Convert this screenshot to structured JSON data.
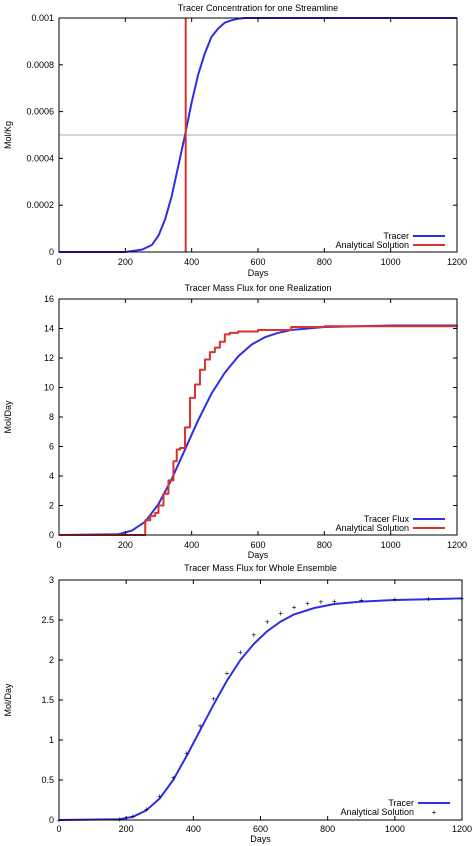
{
  "colors": {
    "background": "#ffffff",
    "axis": "#000000",
    "tracer": "#2e2ee6",
    "analytical": "#d9332b",
    "reference_line": "#a8a8a8",
    "analytical_points": "#e89a9a"
  },
  "chart_data": [
    {
      "type": "line",
      "title": "Tracer Concentration for one Streamline",
      "xlabel": "Days",
      "ylabel": "Mol/Kg",
      "xlim": [
        0,
        1200
      ],
      "ylim": [
        0,
        0.001
      ],
      "xticks": [
        0,
        200,
        400,
        600,
        800,
        1000,
        1200
      ],
      "xtick_labels": [
        "0",
        "200",
        "400",
        "600",
        "800",
        "1000",
        "1200"
      ],
      "yticks": [
        0,
        0.0002,
        0.0004,
        0.0006,
        0.0008,
        0.001
      ],
      "ytick_labels": [
        "0",
        "0.0002",
        "0.0004",
        "0.0006",
        "0.0008",
        "0.001"
      ],
      "grid": false,
      "legend_position": "bottom-right",
      "reference_hline": 0.0005,
      "series": [
        {
          "name": "Tracer",
          "color": "#2e2ee6",
          "style": "line",
          "x": [
            0,
            200,
            250,
            280,
            300,
            320,
            340,
            360,
            380,
            400,
            420,
            440,
            460,
            480,
            500,
            520,
            540,
            560,
            600,
            700,
            800,
            1000,
            1200
          ],
          "y": [
            0,
            0,
            1e-05,
            3e-05,
            7e-05,
            0.00014,
            0.00024,
            0.00037,
            0.0005,
            0.00064,
            0.00076,
            0.00085,
            0.00092,
            0.000955,
            0.00098,
            0.00099,
            0.000997,
            0.001,
            0.001,
            0.001,
            0.001,
            0.001,
            0.001
          ]
        },
        {
          "name": "Analytical Solution",
          "color": "#d9332b",
          "style": "vertical",
          "x": [
            382
          ],
          "y": [
            0.001
          ]
        }
      ]
    },
    {
      "type": "line",
      "title": "Tracer Mass Flux for one Realization",
      "xlabel": "Days",
      "ylabel": "Mol/Day",
      "xlim": [
        0,
        1200
      ],
      "ylim": [
        0,
        16
      ],
      "xticks": [
        0,
        200,
        400,
        600,
        800,
        1000,
        1200
      ],
      "xtick_labels": [
        "0",
        "200",
        "400",
        "600",
        "800",
        "1000",
        "1200"
      ],
      "yticks": [
        0,
        2,
        4,
        6,
        8,
        10,
        12,
        14,
        16
      ],
      "ytick_labels": [
        "0",
        "2",
        "4",
        "6",
        "8",
        "10",
        "12",
        "14",
        "16"
      ],
      "grid": false,
      "legend_position": "bottom-right",
      "series": [
        {
          "name": "Tracer Flux",
          "color": "#2e2ee6",
          "style": "line",
          "x": [
            0,
            180,
            220,
            260,
            300,
            340,
            380,
            420,
            460,
            500,
            540,
            580,
            620,
            660,
            700,
            800,
            900,
            1000,
            1200
          ],
          "y": [
            0,
            0.05,
            0.3,
            0.9,
            2.1,
            3.8,
            5.8,
            7.8,
            9.6,
            11.0,
            12.1,
            12.9,
            13.4,
            13.7,
            13.9,
            14.1,
            14.15,
            14.2,
            14.2
          ]
        },
        {
          "name": "Analytical Solution",
          "color": "#d9332b",
          "style": "step",
          "x": [
            0,
            250,
            260,
            275,
            290,
            300,
            315,
            330,
            345,
            355,
            365,
            380,
            395,
            410,
            425,
            440,
            455,
            470,
            485,
            500,
            515,
            540,
            600,
            700,
            800,
            1200
          ],
          "y": [
            0,
            0,
            1.0,
            1.3,
            1.5,
            2.0,
            2.8,
            3.7,
            5.0,
            5.8,
            5.9,
            7.3,
            9.3,
            10.2,
            11.2,
            11.9,
            12.4,
            12.7,
            13.1,
            13.6,
            13.7,
            13.8,
            13.9,
            14.1,
            14.15,
            14.2
          ]
        }
      ]
    },
    {
      "type": "line",
      "title": "Tracer Mass Flux for Whole Ensemble",
      "xlabel": "Days",
      "ylabel": "Mol/Day",
      "xlim": [
        0,
        1200
      ],
      "ylim": [
        0,
        3
      ],
      "xticks": [
        0,
        200,
        400,
        600,
        800,
        1000,
        1200
      ],
      "xtick_labels": [
        "0",
        "200",
        "400",
        "600",
        "800",
        "1000",
        "1200"
      ],
      "yticks": [
        0,
        0.5,
        1,
        1.5,
        2,
        2.5,
        3
      ],
      "ytick_labels": [
        "0",
        "0.5",
        "1",
        "1.5",
        "2",
        "2.5",
        "3"
      ],
      "grid": false,
      "legend_position": "bottom-right",
      "series": [
        {
          "name": "Tracer",
          "color": "#2e2ee6",
          "style": "line",
          "x": [
            0,
            180,
            220,
            260,
            300,
            340,
            380,
            420,
            460,
            500,
            540,
            580,
            620,
            660,
            700,
            760,
            820,
            900,
            1000,
            1100,
            1200
          ],
          "y": [
            0,
            0.01,
            0.04,
            0.12,
            0.27,
            0.5,
            0.8,
            1.12,
            1.44,
            1.74,
            2.0,
            2.2,
            2.36,
            2.48,
            2.57,
            2.65,
            2.7,
            2.73,
            2.75,
            2.76,
            2.77
          ]
        },
        {
          "name": "Analytical Solution",
          "color": "#e89a9a",
          "style": "points",
          "x": [
            0,
            180,
            220,
            260,
            300,
            340,
            380,
            420,
            460,
            500,
            540,
            580,
            620,
            660,
            700,
            740,
            780,
            820,
            900,
            1000,
            1100,
            1200
          ],
          "y": [
            0,
            0.01,
            0.05,
            0.14,
            0.3,
            0.53,
            0.84,
            1.18,
            1.52,
            1.84,
            2.1,
            2.32,
            2.48,
            2.59,
            2.66,
            2.71,
            2.73,
            2.74,
            2.75,
            2.76,
            2.77,
            2.77
          ]
        }
      ]
    }
  ]
}
